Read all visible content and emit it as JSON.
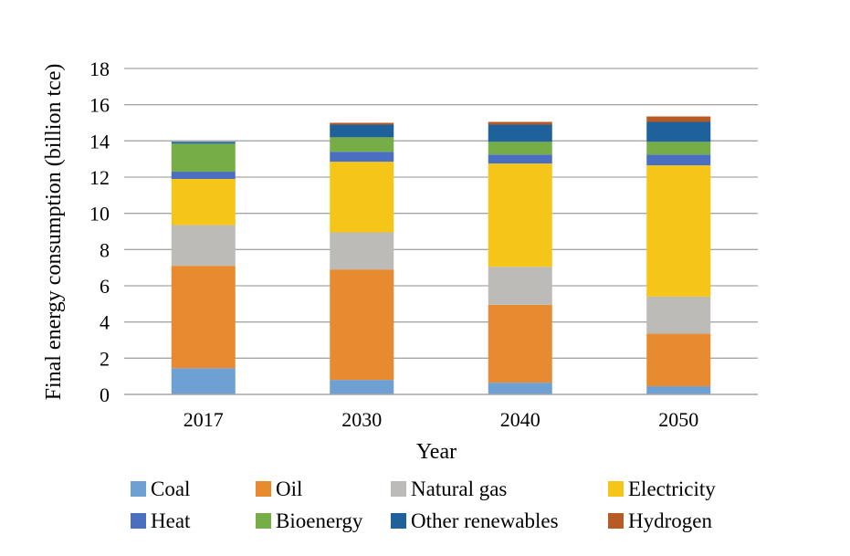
{
  "chart_data": {
    "type": "bar",
    "stacked": true,
    "categories": [
      "2017",
      "2030",
      "2040",
      "2050"
    ],
    "series": [
      {
        "name": "Coal",
        "color": "#6FA0D4",
        "values": [
          1.45,
          0.8,
          0.65,
          0.45
        ]
      },
      {
        "name": "Oil",
        "color": "#E88A30",
        "values": [
          5.65,
          6.1,
          4.3,
          2.9
        ]
      },
      {
        "name": "Natural gas",
        "color": "#BDBBB7",
        "values": [
          2.25,
          2.05,
          2.1,
          2.05
        ]
      },
      {
        "name": "Electricity",
        "color": "#F5C518",
        "values": [
          2.55,
          3.9,
          5.7,
          7.25
        ]
      },
      {
        "name": "Heat",
        "color": "#4A6FC0",
        "values": [
          0.4,
          0.55,
          0.5,
          0.6
        ]
      },
      {
        "name": "Bioenergy",
        "color": "#77AD47",
        "values": [
          1.55,
          0.8,
          0.7,
          0.7
        ]
      },
      {
        "name": "Other renewables",
        "color": "#1F619A",
        "values": [
          0.1,
          0.7,
          0.95,
          1.1
        ]
      },
      {
        "name": "Hydrogen",
        "color": "#B85A24",
        "values": [
          0.0,
          0.1,
          0.15,
          0.3
        ]
      }
    ],
    "title": "",
    "xlabel": "Year",
    "ylabel": "Final energy consumption (billion tce)",
    "ylim": [
      0,
      18
    ],
    "yticks": [
      "0",
      "2",
      "4",
      "6",
      "8",
      "10",
      "12",
      "14",
      "16",
      "18"
    ],
    "grid": true,
    "legend_position": "bottom"
  }
}
